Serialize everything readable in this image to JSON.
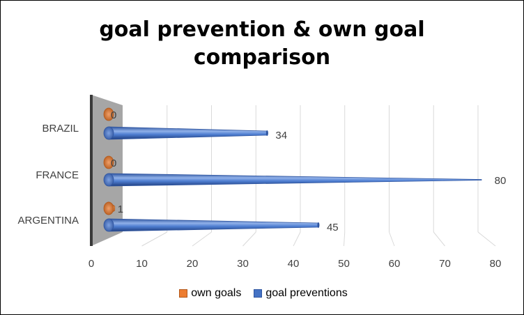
{
  "chart_data": {
    "type": "bar",
    "title": "goal prevention & own goal comparison",
    "title_lines": [
      "goal prevention & own goal",
      "comparison"
    ],
    "categories": [
      "ARGENTINA",
      "FRANCE",
      "BRAZIL"
    ],
    "series": [
      {
        "name": "goal preventions",
        "values": [
          45,
          80,
          34
        ],
        "color": "#4472c4"
      },
      {
        "name": "own goals",
        "values": [
          1,
          0,
          0
        ],
        "color": "#ed7d31"
      }
    ],
    "xlim": [
      0,
      80
    ],
    "xticks": [
      "0",
      "10",
      "20",
      "30",
      "40",
      "50",
      "60",
      "70",
      "80"
    ],
    "grid": true,
    "legend": "bottom",
    "style": "3d-cone-horizontal"
  }
}
